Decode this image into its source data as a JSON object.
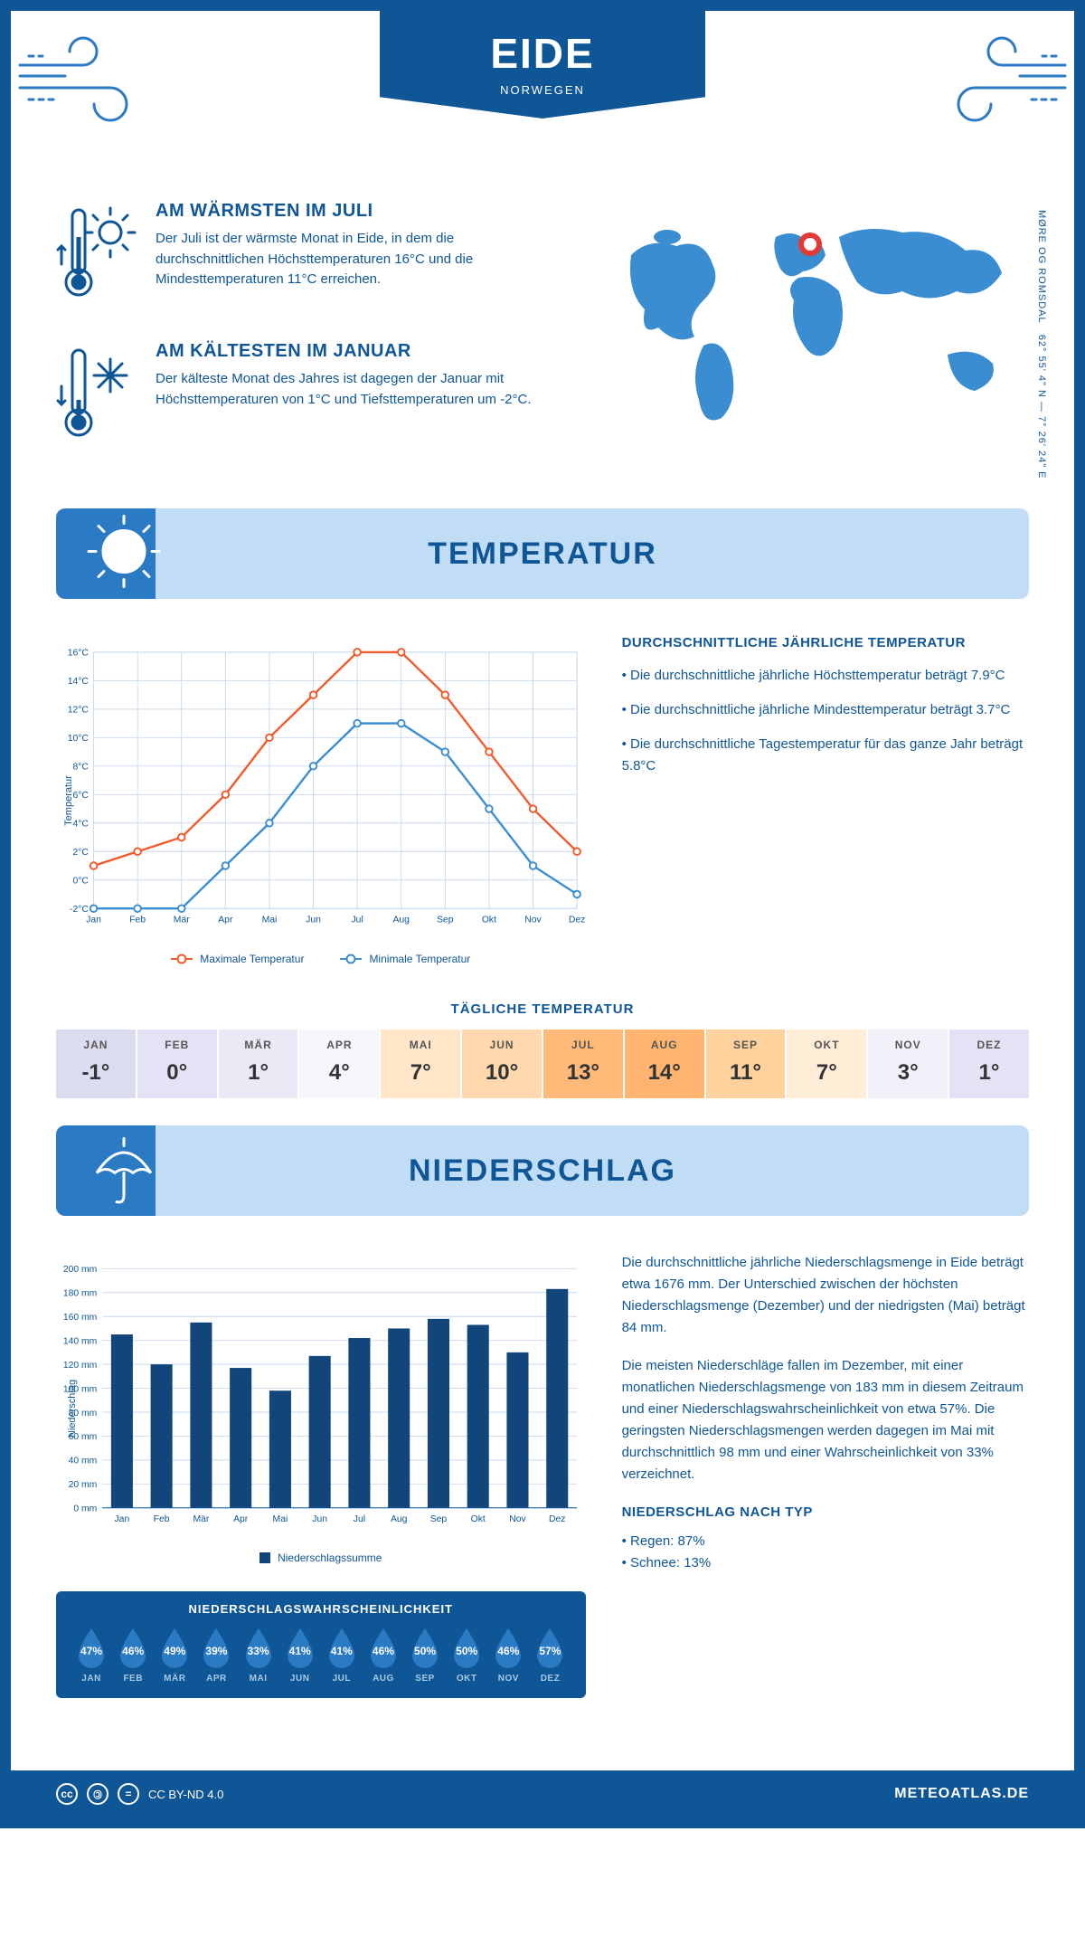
{
  "colors": {
    "primary": "#0f5696",
    "secondary_blue": "#2b7ac4",
    "light_blue": "#c0ddf5",
    "map_blue": "#3a8dd0",
    "max_line": "#f15a29",
    "min_line": "#3a8dd0",
    "grid": "#c9d9ea",
    "bar_fill": "#12467a",
    "drop_fill": "#2b7ac4",
    "text_dark": "#333333"
  },
  "header": {
    "title": "EIDE",
    "subtitle": "NORWEGEN"
  },
  "coords": {
    "text": "62° 55' 4\" N — 7° 26' 24\" E",
    "region": "MØRE OG ROMSDAL"
  },
  "warmest": {
    "title": "AM WÄRMSTEN IM JULI",
    "text": "Der Juli ist der wärmste Monat in Eide, in dem die durchschnittlichen Höchsttemperaturen 16°C und die Mindesttemperaturen 11°C erreichen."
  },
  "coldest": {
    "title": "AM KÄLTESTEN IM JANUAR",
    "text": "Der kälteste Monat des Jahres ist dagegen der Januar mit Höchsttemperaturen von 1°C und Tiefsttemperaturen um -2°C."
  },
  "sections": {
    "temperature": "TEMPERATUR",
    "precipitation": "NIEDERSCHLAG"
  },
  "temp_chart": {
    "months": [
      "Jan",
      "Feb",
      "Mär",
      "Apr",
      "Mai",
      "Jun",
      "Jul",
      "Aug",
      "Sep",
      "Okt",
      "Nov",
      "Dez"
    ],
    "max_series": [
      1,
      2,
      3,
      6,
      10,
      13,
      16,
      16,
      13,
      9,
      5,
      2
    ],
    "min_series": [
      -2,
      -2,
      -2,
      1,
      4,
      8,
      11,
      11,
      9,
      5,
      1,
      -1
    ],
    "y_min": -2,
    "y_max": 16,
    "y_step": 2,
    "y_label": "Temperatur",
    "y_unit": "°C",
    "legend_max": "Maximale Temperatur",
    "legend_min": "Minimale Temperatur",
    "grid_color": "#c9d9ea",
    "axis_font": 11
  },
  "temp_notes": {
    "title": "DURCHSCHNITTLICHE JÄHRLICHE TEMPERATUR",
    "items": [
      "Die durchschnittliche jährliche Höchsttemperatur beträgt 7.9°C",
      "Die durchschnittliche jährliche Mindesttemperatur beträgt 3.7°C",
      "Die durchschnittliche Tagestemperatur für das ganze Jahr beträgt 5.8°C"
    ]
  },
  "daily": {
    "title": "TÄGLICHE TEMPERATUR",
    "months": [
      "JAN",
      "FEB",
      "MÄR",
      "APR",
      "MAI",
      "JUN",
      "JUL",
      "AUG",
      "SEP",
      "OKT",
      "NOV",
      "DEZ"
    ],
    "values": [
      "-1°",
      "0°",
      "1°",
      "4°",
      "7°",
      "10°",
      "13°",
      "14°",
      "11°",
      "7°",
      "3°",
      "1°"
    ],
    "cell_colors": [
      "#dcdcf1",
      "#e3e3f5",
      "#eaeaf7",
      "#f5f5fb",
      "#ffe6c8",
      "#ffd9ad",
      "#ffb978",
      "#ffb470",
      "#ffd19d",
      "#ffecd7",
      "#f1f1fa",
      "#e3e3f5"
    ]
  },
  "precip_chart": {
    "months": [
      "Jan",
      "Feb",
      "Mär",
      "Apr",
      "Mai",
      "Jun",
      "Jul",
      "Aug",
      "Sep",
      "Okt",
      "Nov",
      "Dez"
    ],
    "values": [
      145,
      120,
      155,
      117,
      98,
      127,
      142,
      150,
      158,
      153,
      130,
      183
    ],
    "y_min": 0,
    "y_max": 200,
    "y_step": 20,
    "y_label": "Niederschlag",
    "y_unit": " mm",
    "legend": "Niederschlagssumme",
    "bar_width_ratio": 0.55
  },
  "precip_text": {
    "p1": "Die durchschnittliche jährliche Niederschlagsmenge in Eide beträgt etwa 1676 mm. Der Unterschied zwischen der höchsten Niederschlagsmenge (Dezember) und der niedrigsten (Mai) beträgt 84 mm.",
    "p2": "Die meisten Niederschläge fallen im Dezember, mit einer monatlichen Niederschlagsmenge von 183 mm in diesem Zeitraum und einer Niederschlagswahrscheinlichkeit von etwa 57%. Die geringsten Niederschlagsmengen werden dagegen im Mai mit durchschnittlich 98 mm und einer Wahrscheinlichkeit von 33% verzeichnet.",
    "type_title": "NIEDERSCHLAG NACH TYP",
    "types": [
      "Regen: 87%",
      "Schnee: 13%"
    ]
  },
  "prob": {
    "title": "NIEDERSCHLAGSWAHRSCHEINLICHKEIT",
    "months": [
      "JAN",
      "FEB",
      "MÄR",
      "APR",
      "MAI",
      "JUN",
      "JUL",
      "AUG",
      "SEP",
      "OKT",
      "NOV",
      "DEZ"
    ],
    "values": [
      "47%",
      "46%",
      "49%",
      "39%",
      "33%",
      "41%",
      "41%",
      "46%",
      "50%",
      "50%",
      "46%",
      "57%"
    ]
  },
  "footer": {
    "license": "CC BY-ND 4.0",
    "site": "METEOATLAS.DE"
  }
}
